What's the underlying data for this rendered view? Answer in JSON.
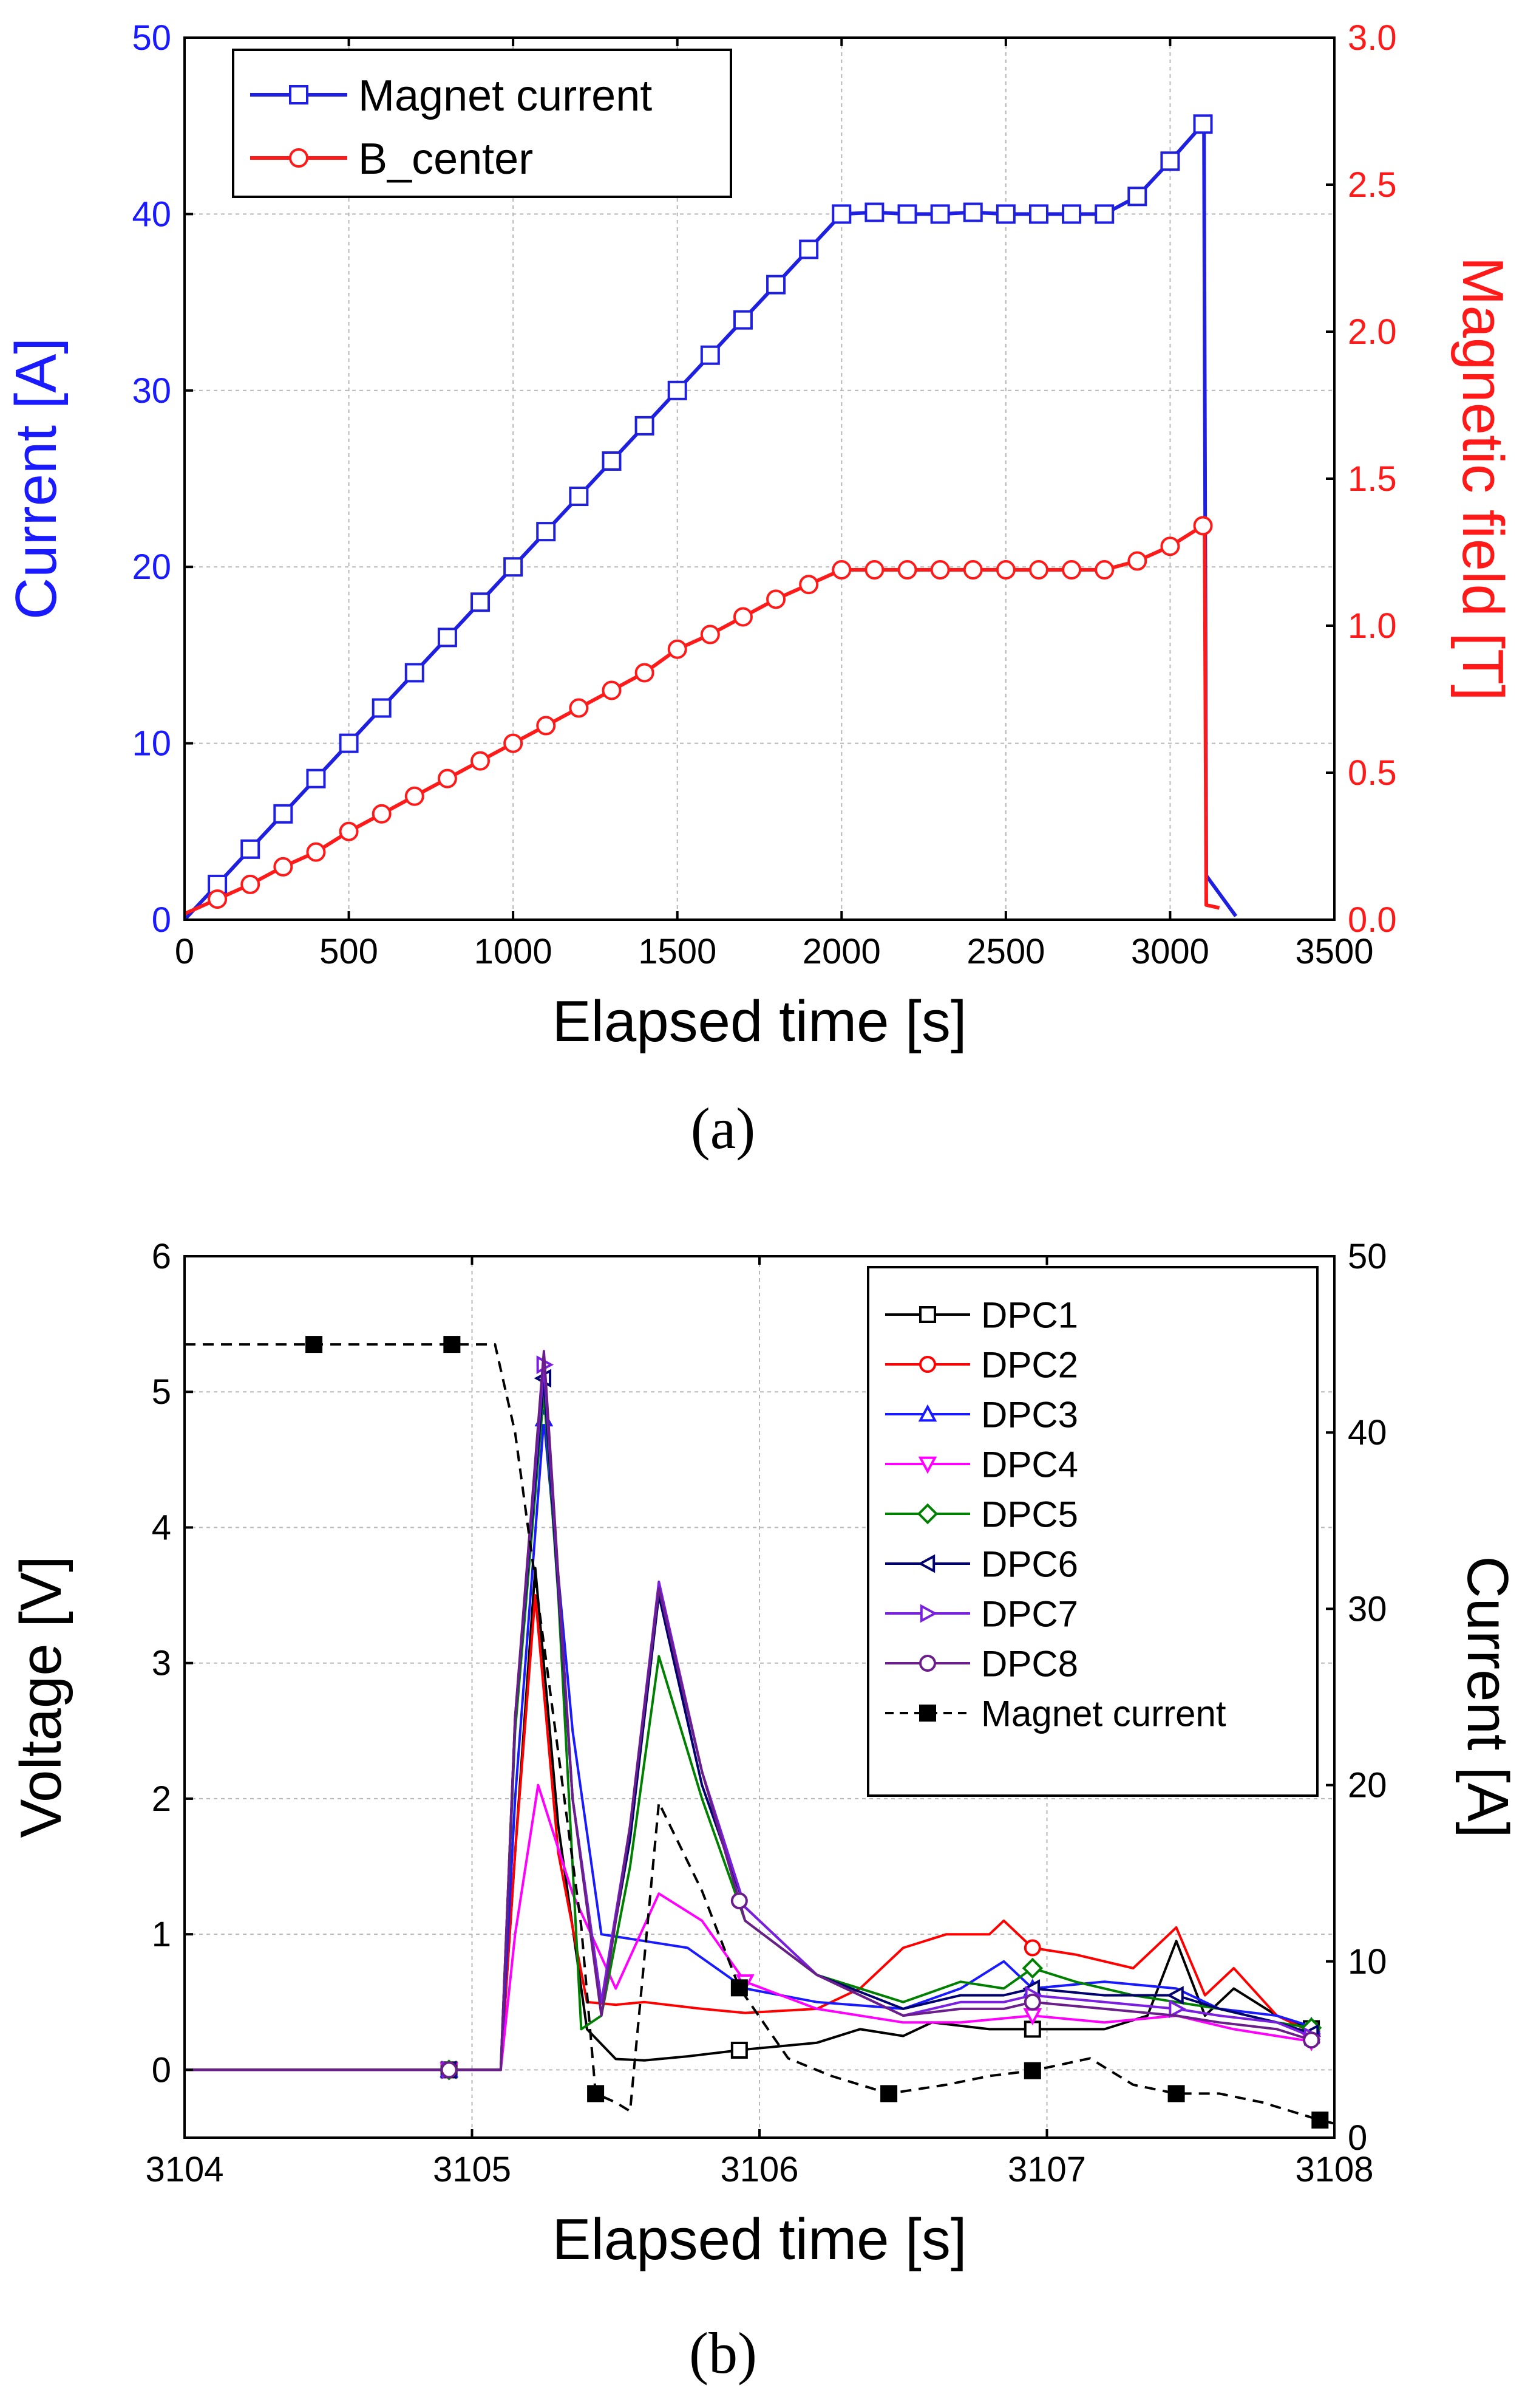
{
  "chart_data": [
    {
      "type": "line",
      "caption": "(a)",
      "xlabel": "Elapsed time [s]",
      "ylabel": "Current [A]",
      "y2label": "Magnetic field [T]",
      "xlim": [
        0,
        3500
      ],
      "ylim": [
        0,
        50
      ],
      "y2lim": [
        0,
        3.0
      ],
      "xticks": [
        0,
        500,
        1000,
        1500,
        2000,
        2500,
        3000,
        3500
      ],
      "yticks": [
        0,
        10,
        20,
        30,
        40,
        50
      ],
      "y2ticks": [
        "0.0",
        "0.5",
        "1.0",
        "1.5",
        "2.0",
        "2.5",
        "3.0"
      ],
      "grid": true,
      "legend_position": "top-left",
      "colors": {
        "left_axis": "#1a1aff",
        "right_axis": "#ff1a1a"
      },
      "series": [
        {
          "name": "Magnet current",
          "axis": "left",
          "color": "#1f1fe0",
          "marker": "square",
          "x": [
            0,
            100,
            200,
            300,
            400,
            500,
            600,
            700,
            800,
            900,
            1000,
            1100,
            1200,
            1300,
            1400,
            1500,
            1600,
            1700,
            1800,
            1900,
            2000,
            2100,
            2200,
            2300,
            2400,
            2500,
            2600,
            2700,
            2800,
            2900,
            3000,
            3100,
            3103,
            3110,
            3200
          ],
          "values": [
            0,
            2,
            4,
            6,
            8,
            10,
            12,
            14,
            16,
            18,
            20,
            22,
            24,
            26,
            28,
            30,
            32,
            34,
            36,
            38,
            40,
            40.1,
            40,
            40,
            40.1,
            40,
            40,
            40,
            40,
            41,
            43,
            45.1,
            45.1,
            2.5,
            0.2
          ],
          "marker_x": [
            100,
            200,
            300,
            400,
            500,
            600,
            700,
            800,
            900,
            1000,
            1100,
            1200,
            1300,
            1400,
            1500,
            1600,
            1700,
            1800,
            1900,
            2000,
            2100,
            2200,
            2300,
            2400,
            2500,
            2600,
            2700,
            2800,
            2900,
            3000,
            3100
          ]
        },
        {
          "name": "B_center",
          "axis": "right",
          "color": "#ff1a1a",
          "marker": "circle",
          "x": [
            0,
            100,
            200,
            300,
            400,
            500,
            600,
            700,
            800,
            900,
            1000,
            1100,
            1200,
            1300,
            1400,
            1500,
            1600,
            1700,
            1800,
            1900,
            2000,
            2100,
            2200,
            2300,
            2400,
            2500,
            2600,
            2700,
            2800,
            2900,
            3000,
            3100,
            3105,
            3110,
            3150
          ],
          "values": [
            0.02,
            0.07,
            0.12,
            0.18,
            0.23,
            0.3,
            0.36,
            0.42,
            0.48,
            0.54,
            0.6,
            0.66,
            0.72,
            0.78,
            0.84,
            0.92,
            0.97,
            1.03,
            1.09,
            1.14,
            1.19,
            1.19,
            1.19,
            1.19,
            1.19,
            1.19,
            1.19,
            1.19,
            1.19,
            1.22,
            1.27,
            1.34,
            1.34,
            0.05,
            0.04
          ],
          "marker_x": [
            100,
            200,
            300,
            400,
            500,
            600,
            700,
            800,
            900,
            1000,
            1100,
            1200,
            1300,
            1400,
            1500,
            1600,
            1700,
            1800,
            1900,
            2000,
            2100,
            2200,
            2300,
            2400,
            2500,
            2600,
            2700,
            2800,
            2900,
            3000,
            3100
          ]
        }
      ]
    },
    {
      "type": "line",
      "caption": "(b)",
      "xlabel": "Elapsed time [s]",
      "ylabel": "Voltage [V]",
      "y2label": "Current [A]",
      "xlim": [
        3104,
        3108
      ],
      "ylim": [
        -0.5,
        6
      ],
      "y2lim": [
        0,
        50
      ],
      "xticks": [
        3104,
        3105,
        3106,
        3107,
        3108
      ],
      "yticks": [
        0,
        1,
        2,
        3,
        4,
        5,
        6
      ],
      "y2ticks": [
        0,
        10,
        20,
        30,
        40,
        50
      ],
      "grid": true,
      "legend_position": "top-right",
      "series": [
        {
          "name": "DPC1",
          "axis": "left",
          "color": "#000000",
          "marker": "square",
          "x": [
            3104,
            3104.9,
            3105.1,
            3105.15,
            3105.22,
            3105.3,
            3105.4,
            3105.5,
            3105.6,
            3105.75,
            3105.95,
            3106.2,
            3106.35,
            3106.5,
            3106.6,
            3106.8,
            3106.95,
            3107.2,
            3107.35,
            3107.45,
            3107.55,
            3107.65,
            3107.8,
            3107.95
          ],
          "values": [
            0,
            0,
            0,
            1.6,
            3.7,
            1.8,
            0.3,
            0.08,
            0.07,
            0.1,
            0.15,
            0.2,
            0.3,
            0.25,
            0.35,
            0.3,
            0.3,
            0.3,
            0.4,
            0.95,
            0.4,
            0.6,
            0.4,
            0.28
          ],
          "marker_x": [
            3104.92,
            3105.93,
            3106.95,
            3107.92
          ]
        },
        {
          "name": "DPC2",
          "axis": "left",
          "color": "#ff0000",
          "marker": "circle",
          "x": [
            3104,
            3104.9,
            3105.1,
            3105.15,
            3105.22,
            3105.3,
            3105.4,
            3105.5,
            3105.6,
            3105.8,
            3105.95,
            3106.2,
            3106.35,
            3106.5,
            3106.65,
            3106.8,
            3106.85,
            3106.95,
            3107.1,
            3107.3,
            3107.45,
            3107.55,
            3107.65,
            3107.8,
            3107.95
          ],
          "values": [
            0,
            0,
            0,
            1.6,
            3.5,
            1.6,
            0.5,
            0.48,
            0.5,
            0.45,
            0.42,
            0.45,
            0.6,
            0.9,
            1.0,
            1.0,
            1.1,
            0.9,
            0.85,
            0.75,
            1.05,
            0.55,
            0.75,
            0.4,
            0.25
          ],
          "marker_x": [
            3104.92,
            3106.95,
            3107.92
          ]
        },
        {
          "name": "DPC3",
          "axis": "left",
          "color": "#1a1aff",
          "marker": "triangle-up",
          "x": [
            3104,
            3104.9,
            3105.1,
            3105.15,
            3105.25,
            3105.35,
            3105.45,
            3105.6,
            3105.75,
            3105.95,
            3106.2,
            3106.5,
            3106.7,
            3106.85,
            3106.95,
            3107.2,
            3107.45,
            3107.6,
            3107.8,
            3107.95
          ],
          "values": [
            0,
            0,
            0,
            2.0,
            4.8,
            2.5,
            1.0,
            0.95,
            0.9,
            0.6,
            0.5,
            0.45,
            0.6,
            0.8,
            0.6,
            0.65,
            0.6,
            0.45,
            0.4,
            0.3
          ],
          "marker_x": [
            3104.92,
            3105.25,
            3106.95,
            3107.92
          ]
        },
        {
          "name": "DPC4",
          "axis": "left",
          "color": "#ff00ff",
          "marker": "triangle-down",
          "x": [
            3104,
            3104.9,
            3105.1,
            3105.15,
            3105.23,
            3105.35,
            3105.5,
            3105.65,
            3105.8,
            3105.95,
            3106.2,
            3106.5,
            3106.7,
            3106.95,
            3107.2,
            3107.45,
            3107.65,
            3107.8,
            3107.95
          ],
          "values": [
            0,
            0,
            0,
            1.0,
            2.1,
            1.3,
            0.6,
            1.3,
            1.1,
            0.65,
            0.45,
            0.35,
            0.35,
            0.4,
            0.35,
            0.4,
            0.3,
            0.25,
            0.2
          ],
          "marker_x": [
            3104.92,
            3105.95,
            3106.95,
            3107.92
          ]
        },
        {
          "name": "DPC5",
          "axis": "left",
          "color": "#008000",
          "marker": "diamond",
          "x": [
            3104,
            3104.9,
            3105.1,
            3105.15,
            3105.25,
            3105.3,
            3105.38,
            3105.45,
            3105.55,
            3105.65,
            3105.8,
            3105.95,
            3106.2,
            3106.5,
            3106.7,
            3106.85,
            3106.95,
            3107.1,
            3107.3,
            3107.45,
            3107.6,
            3107.8,
            3107.95
          ],
          "values": [
            0,
            0,
            0,
            2.5,
            5.0,
            3.5,
            0.3,
            0.4,
            1.5,
            3.05,
            2.0,
            1.1,
            0.7,
            0.5,
            0.65,
            0.6,
            0.75,
            0.65,
            0.55,
            0.5,
            0.45,
            0.35,
            0.3
          ],
          "marker_x": [
            3104.92,
            3106.95,
            3107.92
          ]
        },
        {
          "name": "DPC6",
          "axis": "left",
          "color": "#00006e",
          "marker": "triangle-left",
          "x": [
            3104,
            3104.9,
            3105.1,
            3105.15,
            3105.25,
            3105.35,
            3105.45,
            3105.55,
            3105.65,
            3105.8,
            3105.95,
            3106.2,
            3106.5,
            3106.7,
            3106.85,
            3106.95,
            3107.2,
            3107.45,
            3107.6,
            3107.8,
            3107.95
          ],
          "values": [
            0,
            0,
            0,
            2.6,
            5.1,
            2.0,
            0.5,
            1.7,
            3.5,
            2.1,
            1.2,
            0.7,
            0.45,
            0.55,
            0.55,
            0.6,
            0.55,
            0.55,
            0.45,
            0.35,
            0.25
          ],
          "marker_x": [
            3104.92,
            3105.25,
            3106.95,
            3107.45,
            3107.92
          ]
        },
        {
          "name": "DPC7",
          "axis": "left",
          "color": "#7a1fe0",
          "marker": "triangle-right",
          "x": [
            3104,
            3104.9,
            3105.1,
            3105.15,
            3105.25,
            3105.35,
            3105.45,
            3105.55,
            3105.65,
            3105.8,
            3105.95,
            3106.2,
            3106.5,
            3106.7,
            3106.85,
            3106.95,
            3107.2,
            3107.45,
            3107.6,
            3107.8,
            3107.95
          ],
          "values": [
            0,
            0,
            0,
            2.6,
            5.2,
            2.0,
            0.5,
            1.8,
            3.6,
            2.2,
            1.2,
            0.7,
            0.4,
            0.5,
            0.5,
            0.55,
            0.5,
            0.45,
            0.4,
            0.35,
            0.22
          ],
          "marker_x": [
            3104.92,
            3105.25,
            3106.95,
            3107.45,
            3107.92
          ]
        },
        {
          "name": "DPC8",
          "axis": "left",
          "color": "#6a1e8a",
          "marker": "circle",
          "x": [
            3104,
            3104.9,
            3105.1,
            3105.15,
            3105.25,
            3105.35,
            3105.45,
            3105.55,
            3105.65,
            3105.8,
            3105.95,
            3106.2,
            3106.5,
            3106.7,
            3106.85,
            3106.95,
            3107.2,
            3107.45,
            3107.6,
            3107.8,
            3107.95
          ],
          "values": [
            0,
            0,
            0,
            2.6,
            5.3,
            2.0,
            0.4,
            1.8,
            3.55,
            2.2,
            1.1,
            0.7,
            0.4,
            0.45,
            0.45,
            0.5,
            0.45,
            0.4,
            0.35,
            0.3,
            0.2
          ],
          "marker_x": [
            3104.92,
            3105.93,
            3106.95,
            3107.92
          ]
        },
        {
          "name": "Magnet current",
          "axis": "right",
          "color": "#000000",
          "marker": "filled-square",
          "dashed": true,
          "x": [
            3104,
            3104.45,
            3104.93,
            3105.08,
            3105.15,
            3105.25,
            3105.38,
            3105.43,
            3105.5,
            3105.55,
            3105.65,
            3105.8,
            3105.93,
            3106.1,
            3106.25,
            3106.45,
            3106.65,
            3106.8,
            3106.95,
            3107.15,
            3107.3,
            3107.45,
            3107.6,
            3107.75,
            3107.95,
            3108
          ],
          "values": [
            45,
            45,
            45,
            45,
            40,
            28,
            12,
            2.5,
            2,
            1.5,
            19,
            14,
            8.5,
            4.5,
            3.5,
            2.5,
            3,
            3.5,
            3.8,
            4.5,
            3,
            2.5,
            2.5,
            2,
            1,
            0.8
          ],
          "marker_x": [
            3104.45,
            3104.93,
            3105.43,
            3105.93,
            3106.45,
            3106.95,
            3107.45,
            3107.95
          ]
        }
      ]
    }
  ]
}
